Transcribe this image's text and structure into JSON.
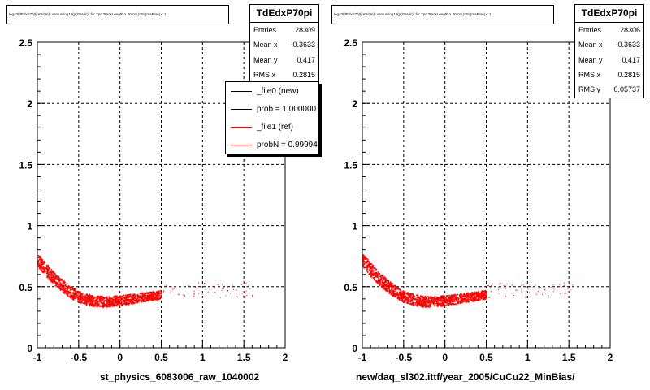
{
  "chart_data": [
    {
      "type": "scatter",
      "title": "log10(dEdx(I70)(keV/cm)) versus log10(p(GeV/c)) for Tpc.TrackLength > 40 cm,|nSigmaPion| < 1",
      "xlabel": "st_physics_6083006_raw_1040002",
      "ylabel": "",
      "xlim": [
        -1,
        2
      ],
      "ylim": [
        0,
        2.5
      ],
      "xticks": [
        "-1",
        "-0.5",
        "0",
        "0.5",
        "1",
        "1.5",
        "2"
      ],
      "yticks": [
        "0",
        "0.5",
        "1",
        "1.5",
        "2",
        "2.5"
      ],
      "grid": true,
      "marker_color": "#ff0000",
      "band": {
        "x": [
          -1.0,
          -0.9,
          -0.8,
          -0.7,
          -0.6,
          -0.5,
          -0.4,
          -0.3,
          -0.2,
          -0.1,
          0.0,
          0.1,
          0.2,
          0.3,
          0.4,
          0.5
        ],
        "y": [
          0.72,
          0.64,
          0.57,
          0.51,
          0.46,
          0.42,
          0.4,
          0.385,
          0.38,
          0.385,
          0.39,
          0.4,
          0.41,
          0.42,
          0.43,
          0.44
        ]
      },
      "sparse_x_range": [
        0.5,
        1.6
      ],
      "stats": {
        "name": "TdEdxP70pi",
        "rows": [
          {
            "label": "Entries",
            "value": "28309"
          },
          {
            "label": "Mean x",
            "value": "-0.3633"
          },
          {
            "label": "Mean y",
            "value": "0.417"
          },
          {
            "label": "RMS x",
            "value": "0.2815"
          }
        ]
      },
      "legend": {
        "entries": [
          {
            "label": "_file0 (new)",
            "color": "#000000"
          },
          {
            "label": "prob = 1.000000",
            "color": "#000000"
          },
          {
            "label": "_file1 (ref)",
            "color": "#ff0000"
          },
          {
            "label": "probN = 0.99994",
            "color": "#ff0000"
          }
        ]
      }
    },
    {
      "type": "scatter",
      "title": "log10(dEdx(I70)(keV/cm)) versus log10(p(GeV/c)) for Tpc.TrackLength > 40 cm,|nSigmaPion| < 1",
      "xlabel": "new/daq_sl302.ittf/year_2005/CuCu22_MinBias/",
      "ylabel": "",
      "xlim": [
        -1,
        2
      ],
      "ylim": [
        0,
        2.5
      ],
      "xticks": [
        "-1",
        "-0.5",
        "0",
        "0.5",
        "1",
        "1.5",
        "2"
      ],
      "yticks": [
        "0",
        "0.5",
        "1",
        "1.5",
        "2",
        "2.5"
      ],
      "grid": true,
      "marker_color": "#ff0000",
      "band": {
        "x": [
          -1.0,
          -0.9,
          -0.8,
          -0.7,
          -0.6,
          -0.5,
          -0.4,
          -0.3,
          -0.2,
          -0.1,
          0.0,
          0.1,
          0.2,
          0.3,
          0.4,
          0.5
        ],
        "y": [
          0.72,
          0.64,
          0.57,
          0.51,
          0.46,
          0.42,
          0.4,
          0.385,
          0.38,
          0.385,
          0.39,
          0.4,
          0.41,
          0.42,
          0.43,
          0.44
        ]
      },
      "sparse_x_range": [
        0.5,
        1.6
      ],
      "stats": {
        "name": "TdEdxP70pi",
        "rows": [
          {
            "label": "Entries",
            "value": "28306"
          },
          {
            "label": "Mean x",
            "value": "-0.3633"
          },
          {
            "label": "Mean y",
            "value": "0.417"
          },
          {
            "label": "RMS x",
            "value": "0.2815"
          },
          {
            "label": "RMS y",
            "value": "0.05737"
          }
        ]
      }
    }
  ]
}
